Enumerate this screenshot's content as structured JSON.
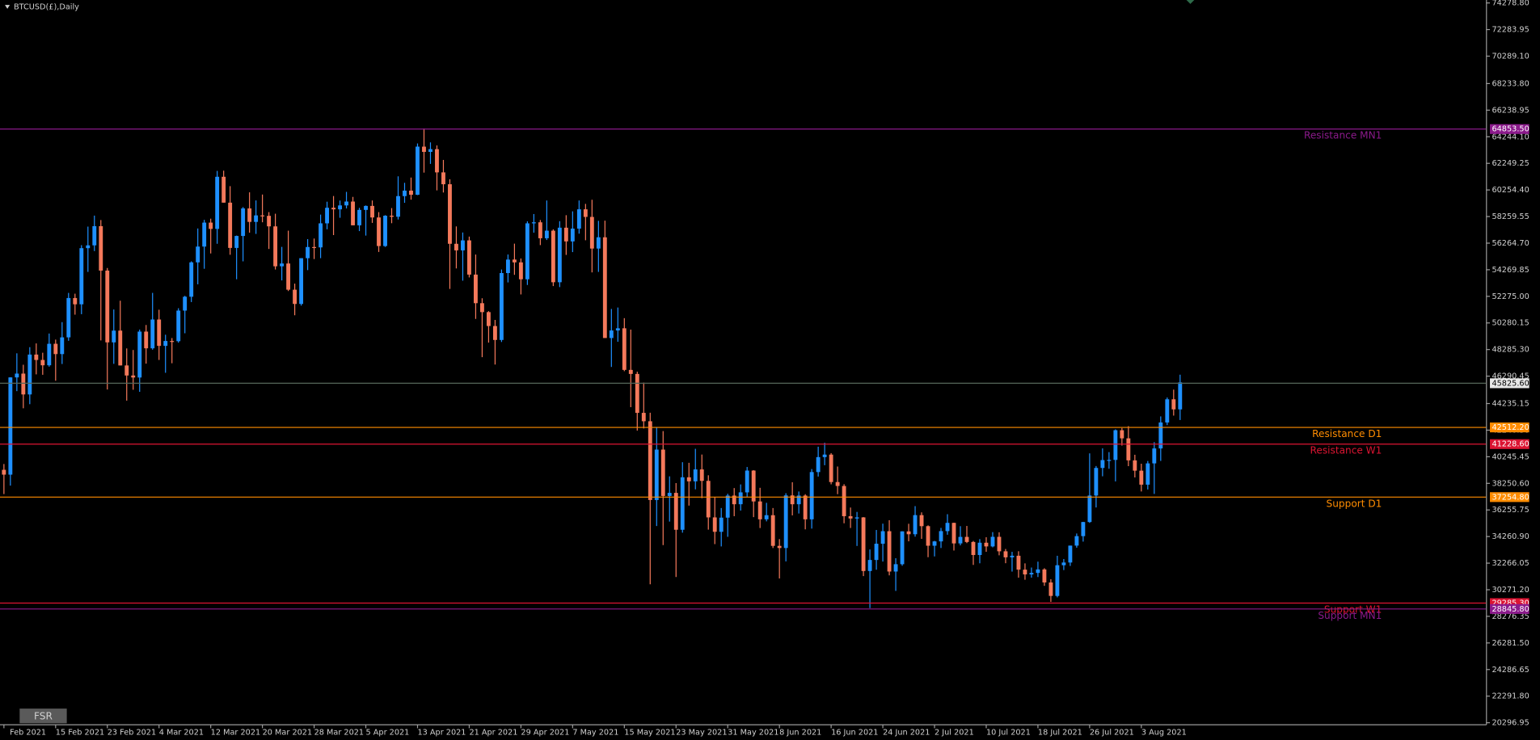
{
  "chart_data": {
    "type": "candlestick",
    "title": "BTCUSD(£),Daily",
    "up_color": "#1e90ff",
    "down_color": "#f4795b",
    "ylim": [
      20180,
      74500
    ],
    "yticks": [
      {
        "value": 74278.8,
        "label": "74278.80"
      },
      {
        "value": 72283.95,
        "label": "72283.95"
      },
      {
        "value": 70289.1,
        "label": "70289.10"
      },
      {
        "value": 68233.8,
        "label": "68233.80"
      },
      {
        "value": 66238.95,
        "label": "66238.95"
      },
      {
        "value": 64244.1,
        "label": "64244.10"
      },
      {
        "value": 62249.25,
        "label": "62249.25"
      },
      {
        "value": 60254.4,
        "label": "60254.40"
      },
      {
        "value": 58259.55,
        "label": "58259.55"
      },
      {
        "value": 56264.7,
        "label": "56264.70"
      },
      {
        "value": 54269.85,
        "label": "54269.85"
      },
      {
        "value": 52275,
        "label": "52275.00"
      },
      {
        "value": 50280.15,
        "label": "50280.15"
      },
      {
        "value": 48285.3,
        "label": "48285.30"
      },
      {
        "value": 46290.45,
        "label": "46290.45"
      },
      {
        "value": 44235.15,
        "label": "44235.15"
      },
      {
        "value": 42240.3,
        "label": "42240.30"
      },
      {
        "value": 40245.45,
        "label": "40245.45"
      },
      {
        "value": 38250.6,
        "label": "38250.60"
      },
      {
        "value": 36255.75,
        "label": "36255.75"
      },
      {
        "value": 34260.9,
        "label": "34260.90"
      },
      {
        "value": 32266.05,
        "label": "32266.05"
      },
      {
        "value": 30271.2,
        "label": "30271.20"
      },
      {
        "value": 28276.35,
        "label": "28276.35"
      },
      {
        "value": 26281.5,
        "label": "26281.50"
      },
      {
        "value": 24286.65,
        "label": "24286.65"
      },
      {
        "value": 22291.8,
        "label": "22291.80"
      },
      {
        "value": 20296.95,
        "label": "20296.95"
      }
    ],
    "xticks": [
      {
        "value": "7 Feb 2021",
        "label": "Feb 2021"
      },
      "15 Feb 2021",
      "23 Feb 2021",
      "4 Mar 2021",
      "12 Mar 2021",
      "20 Mar 2021",
      "28 Mar 2021",
      "5 Apr 2021",
      "13 Apr 2021",
      "21 Apr 2021",
      "29 Apr 2021",
      "7 May 2021",
      "15 May 2021",
      "23 May 2021",
      "31 May 2021",
      "8 Jun 2021",
      "16 Jun 2021",
      "24 Jun 2021",
      "2 Jul 2021",
      "10 Jul 2021",
      "18 Jul 2021",
      "26 Jul 2021",
      "3 Aug 2021"
    ],
    "categories": [
      "7 Feb 2021",
      "8 Feb 2021",
      "9 Feb 2021",
      "10 Feb 2021",
      "11 Feb 2021",
      "12 Feb 2021",
      "13 Feb 2021",
      "14 Feb 2021",
      "15 Feb 2021",
      "16 Feb 2021",
      "17 Feb 2021",
      "18 Feb 2021",
      "19 Feb 2021",
      "20 Feb 2021",
      "21 Feb 2021",
      "22 Feb 2021",
      "23 Feb 2021",
      "24 Feb 2021",
      "25 Feb 2021",
      "26 Feb 2021",
      "27 Feb 2021",
      "1 Mar 2021",
      "2 Mar 2021",
      "3 Mar 2021",
      "4 Mar 2021",
      "5 Mar 2021",
      "6 Mar 2021",
      "7 Mar 2021",
      "8 Mar 2021",
      "9 Mar 2021",
      "10 Mar 2021",
      "11 Mar 2021",
      "12 Mar 2021",
      "13 Mar 2021",
      "14 Mar 2021",
      "15 Mar 2021",
      "16 Mar 2021",
      "17 Mar 2021",
      "18 Mar 2021",
      "19 Mar 2021",
      "20 Mar 2021",
      "21 Mar 2021",
      "22 Mar 2021",
      "23 Mar 2021",
      "24 Mar 2021",
      "25 Mar 2021",
      "26 Mar 2021",
      "27 Mar 2021",
      "28 Mar 2021",
      "29 Mar 2021",
      "30 Mar 2021",
      "31 Mar 2021",
      "1 Apr 2021",
      "2 Apr 2021",
      "3 Apr 2021",
      "4 Apr 2021",
      "5 Apr 2021",
      "6 Apr 2021",
      "7 Apr 2021",
      "8 Apr 2021",
      "9 Apr 2021",
      "10 Apr 2021",
      "11 Apr 2021",
      "12 Apr 2021",
      "13 Apr 2021",
      "14 Apr 2021",
      "15 Apr 2021",
      "16 Apr 2021",
      "17 Apr 2021",
      "18 Apr 2021",
      "19 Apr 2021",
      "20 Apr 2021",
      "21 Apr 2021",
      "22 Apr 2021",
      "23 Apr 2021",
      "24 Apr 2021",
      "25 Apr 2021",
      "26 Apr 2021",
      "27 Apr 2021",
      "28 Apr 2021",
      "29 Apr 2021",
      "30 Apr 2021",
      "1 May 2021",
      "2 May 2021",
      "3 May 2021",
      "4 May 2021",
      "5 May 2021",
      "6 May 2021",
      "7 May 2021",
      "8 May 2021",
      "9 May 2021",
      "10 May 2021",
      "11 May 2021",
      "12 May 2021",
      "13 May 2021",
      "14 May 2021",
      "15 May 2021",
      "16 May 2021",
      "17 May 2021",
      "18 May 2021",
      "19 May 2021",
      "20 May 2021",
      "21 May 2021",
      "22 May 2021",
      "23 May 2021",
      "24 May 2021",
      "25 May 2021",
      "26 May 2021",
      "27 May 2021",
      "28 May 2021",
      "29 May 2021",
      "30 May 2021",
      "31 May 2021",
      "1 Jun 2021",
      "2 Jun 2021",
      "3 Jun 2021",
      "4 Jun 2021",
      "5 Jun 2021",
      "6 Jun 2021",
      "7 Jun 2021",
      "8 Jun 2021",
      "9 Jun 2021",
      "10 Jun 2021",
      "11 Jun 2021",
      "12 Jun 2021",
      "13 Jun 2021",
      "14 Jun 2021",
      "15 Jun 2021",
      "16 Jun 2021",
      "17 Jun 2021",
      "18 Jun 2021",
      "19 Jun 2021",
      "20 Jun 2021",
      "21 Jun 2021",
      "22 Jun 2021",
      "23 Jun 2021",
      "24 Jun 2021",
      "25 Jun 2021",
      "26 Jun 2021",
      "27 Jun 2021",
      "28 Jun 2021",
      "29 Jun 2021",
      "30 Jun 2021",
      "1 Jul 2021",
      "2 Jul 2021",
      "3 Jul 2021",
      "4 Jul 2021",
      "5 Jul 2021",
      "6 Jul 2021",
      "7 Jul 2021",
      "8 Jul 2021",
      "9 Jul 2021",
      "10 Jul 2021",
      "11 Jul 2021",
      "12 Jul 2021",
      "13 Jul 2021",
      "14 Jul 2021",
      "15 Jul 2021",
      "16 Jul 2021",
      "17 Jul 2021",
      "18 Jul 2021",
      "19 Jul 2021",
      "20 Jul 2021",
      "21 Jul 2021",
      "22 Jul 2021",
      "23 Jul 2021",
      "24 Jul 2021",
      "25 Jul 2021",
      "26 Jul 2021",
      "27 Jul 2021",
      "28 Jul 2021",
      "29 Jul 2021",
      "30 Jul 2021",
      "31 Jul 2021",
      "1 Aug 2021",
      "2 Aug 2021",
      "3 Aug 2021",
      "4 Aug 2021",
      "5 Aug 2021",
      "6 Aug 2021",
      "7 Aug 2021",
      "8 Aug 2021",
      "9 Aug 2021"
    ],
    "open": [
      39266,
      38903,
      46196,
      46481,
      44918,
      47909,
      47504,
      47105,
      48717,
      47945,
      49199,
      52149,
      51679,
      55888,
      56099,
      57539,
      54207,
      48824,
      49705,
      47093,
      46339,
      46188,
      49631,
      48378,
      50538,
      48561,
      48927,
      48912,
      51206,
      52246,
      54824,
      56008,
      57805,
      57332,
      61243,
      59302,
      55907,
      56804,
      58870,
      57858,
      58346,
      58313,
      57523,
      54529,
      54738,
      52774,
      51704,
      55137,
      55974,
      55947,
      57750,
      58918,
      58800,
      59095,
      59384,
      57603,
      58758,
      59057,
      58192,
      56048,
      58323,
      58245,
      59793,
      60204,
      59893,
      63503,
      63110,
      63314,
      61572,
      60683,
      56216,
      55724,
      56473,
      53906,
      51762,
      51093,
      50050,
      49004,
      54021,
      55033,
      54824,
      53555,
      57750,
      57828,
      56631,
      57200,
      53333,
      57424,
      56396,
      57356,
      58803,
      58232,
      55859,
      56704,
      49150,
      49716,
      49880,
      46760,
      46456,
      43537,
      42909,
      37002,
      40782,
      37304,
      37536,
      34770,
      38705,
      38402,
      39295,
      38436,
      35697,
      34616,
      35678,
      37333,
      36684,
      37575,
      39209,
      36894,
      35552,
      35862,
      33561,
      33402,
      37346,
      36684,
      37334,
      35552,
      39097,
      40218,
      40406,
      38347,
      38053,
      35787,
      35615,
      35698,
      31676,
      32505,
      33723,
      34662,
      31637,
      32186,
      34649,
      34434,
      35867,
      35040,
      33572,
      33897,
      34668,
      35287,
      33746,
      34235,
      33855,
      32877,
      33798,
      33520,
      34240,
      33155,
      32702,
      32822,
      31780,
      31421,
      31533,
      31796,
      30817,
      29807,
      32110,
      32313,
      33581,
      34292,
      35350,
      37337,
      39406,
      39995,
      40008,
      42235,
      41626,
      39974,
      39201,
      38152,
      39747,
      40869,
      42816,
      44555,
      43798
    ],
    "high": [
      39700,
      46203,
      48003,
      47145,
      48463,
      48745,
      48047,
      49487,
      49030,
      50341,
      52533,
      52474,
      56113,
      57505,
      58330,
      58000,
      54400,
      51290,
      51948,
      48370,
      48253,
      49784,
      50127,
      52535,
      51273,
      49396,
      49147,
      51384,
      52314,
      54900,
      57366,
      58013,
      58100,
      61683,
      61700,
      60540,
      56833,
      58970,
      60076,
      59469,
      59911,
      58592,
      58471,
      55985,
      57200,
      53229,
      55137,
      56568,
      56610,
      58405,
      59373,
      59800,
      59462,
      60110,
      59734,
      58913,
      59091,
      59465,
      58591,
      58363,
      58894,
      61276,
      60790,
      61184,
      63742,
      64863,
      63821,
      63594,
      62506,
      61057,
      57520,
      57064,
      56757,
      55410,
      52131,
      51166,
      50506,
      54288,
      55416,
      56227,
      55115,
      57900,
      58448,
      58000,
      59464,
      57300,
      57912,
      58361,
      58650,
      59464,
      59210,
      59519,
      57939,
      57949,
      51330,
      51438,
      50639,
      49783,
      46623,
      45812,
      43546,
      42462,
      42172,
      38776,
      38271,
      39835,
      39791,
      40841,
      40411,
      38856,
      37234,
      36400,
      37469,
      37896,
      38170,
      39478,
      39242,
      37917,
      36790,
      36400,
      34068,
      37510,
      38334,
      37639,
      37436,
      39322,
      41000,
      41295,
      40516,
      39513,
      38187,
      36436,
      36107,
      35721,
      33292,
      34753,
      35228,
      35487,
      32637,
      34656,
      35219,
      36542,
      36074,
      35100,
      33939,
      34909,
      35937,
      35300,
      35038,
      35056,
      33929,
      34069,
      34209,
      34593,
      34581,
      33327,
      33114,
      33159,
      32249,
      31936,
      32378,
      31885,
      31063,
      32819,
      32576,
      33581,
      34490,
      35364,
      40499,
      39550,
      40873,
      40593,
      42300,
      42400,
      42541,
      40394,
      39722,
      39927,
      41341,
      43271,
      44689,
      45282,
      46400
    ],
    "low": [
      37446,
      38076,
      45166,
      43881,
      44187,
      46424,
      46392,
      47000,
      45945,
      47201,
      48942,
      50901,
      50937,
      54108,
      55672,
      48967,
      45290,
      47213,
      47093,
      44454,
      45269,
      45115,
      47228,
      48274,
      47504,
      46542,
      47257,
      48800,
      49506,
      51846,
      53178,
      54343,
      55492,
      56217,
      59302,
      55393,
      53556,
      54900,
      57052,
      56957,
      57830,
      55828,
      54288,
      53470,
      52674,
      50856,
      51579,
      54242,
      55071,
      55139,
      57304,
      56870,
      58168,
      58869,
      57603,
      57168,
      56831,
      57783,
      55604,
      55982,
      57759,
      58038,
      59289,
      59525,
      59869,
      61554,
      62208,
      60222,
      60063,
      52829,
      54368,
      53449,
      53695,
      50583,
      47714,
      48805,
      47159,
      48852,
      53319,
      53887,
      52418,
      53129,
      57052,
      56118,
      56500,
      53046,
      52969,
      55382,
      55593,
      56975,
      56482,
      54071,
      54108,
      49150,
      46980,
      48868,
      46664,
      43963,
      42207,
      42367,
      30681,
      35050,
      33616,
      35383,
      31227,
      34551,
      36581,
      37800,
      37134,
      34779,
      33693,
      33520,
      34241,
      35787,
      36208,
      37243,
      35717,
      34900,
      35400,
      33400,
      31115,
      32396,
      35847,
      35989,
      34800,
      34856,
      38760,
      39609,
      38176,
      37439,
      35255,
      34903,
      33555,
      31295,
      28893,
      31772,
      32385,
      31350,
      30184,
      32071,
      33902,
      34252,
      34086,
      32711,
      32770,
      33402,
      34396,
      33213,
      33599,
      33770,
      32133,
      32255,
      33116,
      33450,
      32854,
      32261,
      31633,
      31175,
      31021,
      31178,
      31224,
      30563,
      29360,
      29700,
      31745,
      32057,
      33424,
      33881,
      35287,
      36441,
      38780,
      39344,
      38397,
      41084,
      39540,
      38694,
      37642,
      37790,
      37458,
      39932,
      42618,
      43331,
      43000
    ],
    "close": [
      38903,
      46196,
      46481,
      44918,
      47909,
      47504,
      47105,
      48717,
      47945,
      49199,
      52149,
      51679,
      55888,
      56099,
      57539,
      54207,
      48824,
      49705,
      47093,
      46339,
      46188,
      49631,
      48378,
      50538,
      48561,
      48927,
      48912,
      51206,
      52246,
      54824,
      56008,
      57805,
      57332,
      61243,
      59302,
      55907,
      56804,
      58870,
      57858,
      58346,
      58313,
      57523,
      54529,
      54738,
      52774,
      51704,
      55137,
      55974,
      55947,
      57750,
      58918,
      58800,
      59095,
      59384,
      57603,
      58758,
      59057,
      58192,
      56048,
      58323,
      58245,
      59793,
      60204,
      59893,
      63503,
      63110,
      63314,
      61572,
      60683,
      56216,
      55724,
      56473,
      53906,
      51762,
      51093,
      50050,
      49004,
      54021,
      55033,
      54824,
      53555,
      57750,
      57828,
      56631,
      57200,
      53333,
      57424,
      56396,
      57356,
      58803,
      58232,
      55859,
      56704,
      49150,
      49716,
      49880,
      46760,
      46456,
      43537,
      42909,
      37002,
      40782,
      37304,
      37536,
      34770,
      38705,
      38402,
      39295,
      38436,
      35697,
      34616,
      35678,
      37333,
      36684,
      37575,
      39209,
      36894,
      35552,
      35862,
      33561,
      33402,
      37346,
      36684,
      37334,
      35552,
      39097,
      40218,
      40406,
      38347,
      38053,
      35787,
      35615,
      35698,
      31676,
      32505,
      33723,
      34662,
      31637,
      32186,
      34649,
      34434,
      35867,
      35040,
      33572,
      33897,
      34668,
      35287,
      33746,
      34235,
      33855,
      32877,
      33798,
      33520,
      34240,
      33155,
      32702,
      32822,
      31780,
      31421,
      31533,
      31796,
      30817,
      29807,
      32110,
      32313,
      33581,
      34292,
      35350,
      37337,
      39406,
      39995,
      40008,
      42235,
      41626,
      39974,
      39201,
      38152,
      39747,
      40869,
      42816,
      44555,
      43798,
      45825.6
    ],
    "current_price": {
      "value": 45825.6,
      "label": "45825.60",
      "color": "#56665a"
    },
    "levels": [
      {
        "name": "Resistance MN1",
        "value": 64853.5,
        "value_label": "64853.50",
        "color": "#8b1a8b"
      },
      {
        "name": "Resistance D1",
        "value": 42512.2,
        "value_label": "42512.20",
        "color": "#ff8c00"
      },
      {
        "name": "Resistance W1",
        "value": 41228.6,
        "value_label": "41228.60",
        "color": "#dc1432"
      },
      {
        "name": "Support D1",
        "value": 37254.8,
        "value_label": "37254.80",
        "color": "#ff8c00"
      },
      {
        "name": "Support W1",
        "value": 29285.3,
        "value_label": "29285.30",
        "color": "#dc1432"
      },
      {
        "name": "Support MN1",
        "value": 28845.8,
        "value_label": "28845.80",
        "color": "#8b1a8b"
      }
    ]
  },
  "toolbar": {
    "button": "FSR"
  }
}
